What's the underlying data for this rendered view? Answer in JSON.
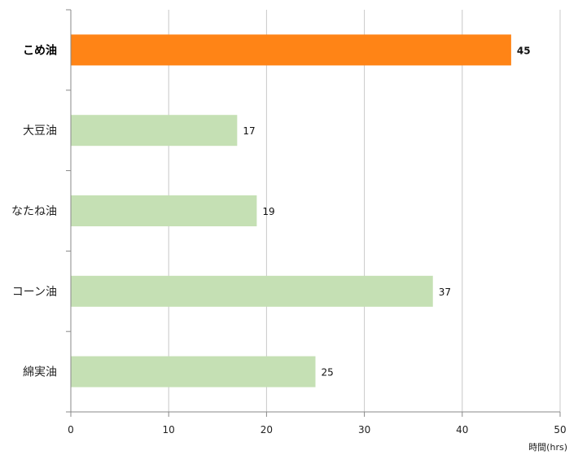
{
  "chart_data": {
    "type": "bar",
    "orientation": "horizontal",
    "categories": [
      "こめ油",
      "大豆油",
      "なたね油",
      "コーン油",
      "綿実油"
    ],
    "values": [
      45,
      17,
      19,
      37,
      25
    ],
    "highlight_index": 0,
    "xlim": [
      0,
      50
    ],
    "xticks": [
      0,
      10,
      20,
      30,
      40,
      50
    ],
    "xlabel": "時間(hrs)",
    "grid": "vertical",
    "legend": "none",
    "colors": {
      "highlight": "#ff8416",
      "default": "#c5e0b4",
      "grid": "#c8c8c8",
      "axis": "#888888"
    }
  }
}
